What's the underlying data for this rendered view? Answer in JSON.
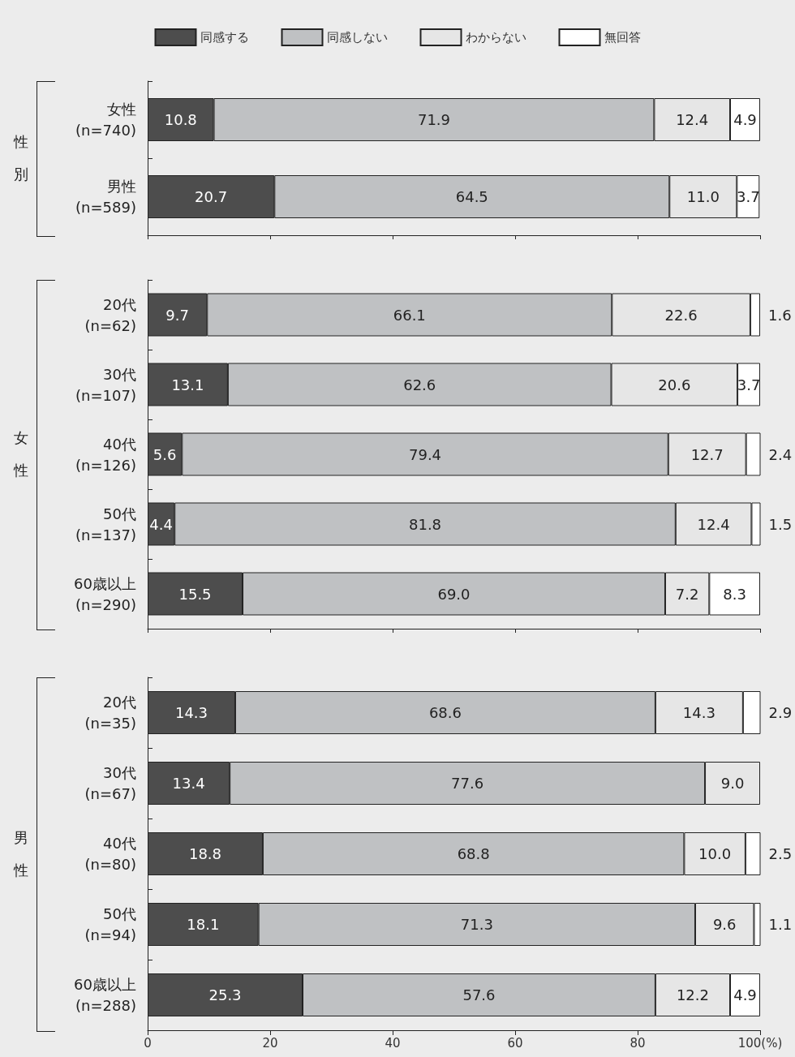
{
  "chart_data": [
    {
      "type": "bar",
      "orientation": "horizontal",
      "stacked": true,
      "ylabel": "性別",
      "categories": [
        "女性\n(n=740)",
        "男性\n(n=589)"
      ],
      "series": [
        {
          "name": "同感する",
          "color": "#4d4d4d",
          "values": [
            10.8,
            20.7
          ],
          "value_labels": [
            "10.8",
            "20.7"
          ]
        },
        {
          "name": "同感しない",
          "color": "#bfc1c3",
          "values": [
            71.9,
            64.5
          ],
          "value_labels": [
            "71.9",
            "64.5"
          ]
        },
        {
          "name": "わからない",
          "color": "#e6e6e6",
          "values": [
            12.4,
            11.0
          ],
          "value_labels": [
            "12.4",
            "11.0"
          ]
        },
        {
          "name": "無回答",
          "color": "#ffffff",
          "values": [
            4.9,
            3.7
          ],
          "value_labels": [
            "4.9",
            "3.7"
          ]
        }
      ],
      "xlim": [
        0,
        100
      ],
      "xticks": [
        0,
        20,
        40,
        60,
        80,
        100
      ],
      "legend": "top",
      "tick_labels": "y"
    },
    {
      "type": "bar",
      "orientation": "horizontal",
      "stacked": true,
      "ylabel": "女性",
      "categories": [
        "20代\n(n=62)",
        "30代\n(n=107)",
        "40代\n(n=126)",
        "50代\n(n=137)",
        "60歳以上\n(n=290)"
      ],
      "series": [
        {
          "color": "#4d4d4d",
          "values": [
            9.7,
            13.1,
            5.6,
            4.4,
            15.5
          ],
          "value_labels": [
            "9.7",
            "13.1",
            "5.6",
            "4.4",
            "15.5"
          ]
        },
        {
          "color": "#bfc1c3",
          "values": [
            66.1,
            62.6,
            79.4,
            81.8,
            69.0
          ],
          "value_labels": [
            "66.1",
            "62.6",
            "79.4",
            "81.8",
            "69.0"
          ]
        },
        {
          "color": "#e6e6e6",
          "values": [
            22.6,
            20.6,
            12.7,
            12.4,
            7.2
          ],
          "value_labels": [
            "22.6",
            "20.6",
            "12.7",
            "12.4",
            "7.2"
          ]
        },
        {
          "color": "#ffffff",
          "values": [
            1.6,
            3.7,
            2.4,
            1.5,
            8.3
          ],
          "value_labels": [
            "1.6",
            "3.7",
            "2.4",
            "1.5",
            "8.3"
          ]
        }
      ],
      "xlim": [
        0,
        100
      ],
      "xticks": [
        0,
        20,
        40,
        60,
        80,
        100
      ],
      "tick_labels": "y"
    },
    {
      "type": "bar",
      "orientation": "horizontal",
      "stacked": true,
      "ylabel": "男性",
      "categories": [
        "20代\n(n=35)",
        "30代\n(n=67)",
        "40代\n(n=80)",
        "50代\n(n=94)",
        "60歳以上\n(n=288)"
      ],
      "series": [
        {
          "color": "#4d4d4d",
          "values": [
            14.3,
            13.4,
            18.8,
            18.1,
            25.3
          ],
          "value_labels": [
            "14.3",
            "13.4",
            "18.8",
            "18.1",
            "25.3"
          ]
        },
        {
          "color": "#bfc1c3",
          "values": [
            68.6,
            77.6,
            68.8,
            71.3,
            57.6
          ],
          "value_labels": [
            "68.6",
            "77.6",
            "68.8",
            "71.3",
            "57.6"
          ]
        },
        {
          "color": "#e6e6e6",
          "values": [
            14.3,
            9.0,
            10.0,
            9.6,
            12.2
          ],
          "value_labels": [
            "14.3",
            "9.0",
            "10.0",
            "9.6",
            "12.2"
          ]
        },
        {
          "color": "#ffffff",
          "values": [
            2.9,
            null,
            2.5,
            1.1,
            4.9
          ],
          "value_labels": [
            "2.9",
            null,
            "2.5",
            "1.1",
            "4.9"
          ]
        }
      ],
      "xlim": [
        0,
        100
      ],
      "xticks": [
        0,
        20,
        40,
        60,
        80,
        {
          "value": 100,
          "label": "100(%)"
        }
      ]
    }
  ]
}
